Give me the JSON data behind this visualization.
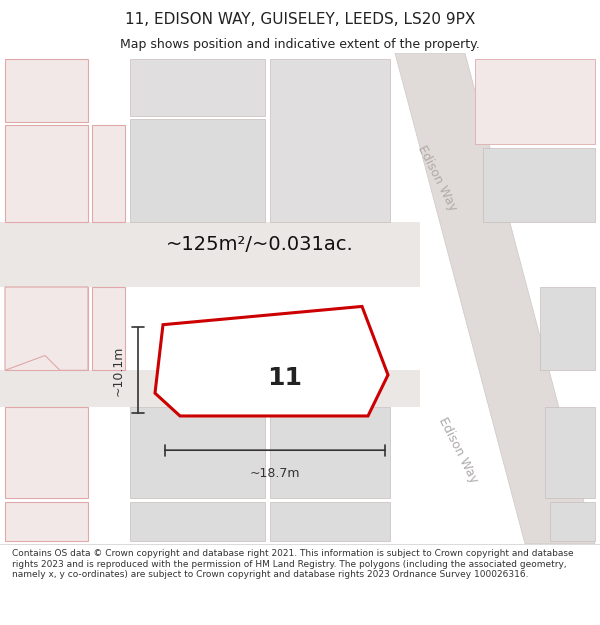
{
  "title": "11, EDISON WAY, GUISELEY, LEEDS, LS20 9PX",
  "subtitle": "Map shows position and indicative extent of the property.",
  "footer": "Contains OS data © Crown copyright and database right 2021. This information is subject to Crown copyright and database rights 2023 and is reproduced with the permission of HM Land Registry. The polygons (including the associated geometry, namely x, y co-ordinates) are subject to Crown copyright and database rights 2023 Ordnance Survey 100026316.",
  "area_label": "~125m²/~0.031ac.",
  "width_label": "~18.7m",
  "height_label": "~10.1m",
  "number_label": "11",
  "map_bg": "#f0eeee",
  "plot_fill": "#ffffff",
  "plot_edge": "#cc0000",
  "plot_edge_width": 2.2,
  "dim_color": "#333333",
  "road_label_color": "#b0aaaa",
  "road_label_size": 9,
  "title_fontsize": 11,
  "subtitle_fontsize": 9,
  "footer_fontsize": 6.5,
  "area_label_fontsize": 14,
  "number_label_fontsize": 18,
  "dim_label_fontsize": 9,
  "title_color": "#222222",
  "subtitle_color": "#222222",
  "footer_color": "#333333"
}
